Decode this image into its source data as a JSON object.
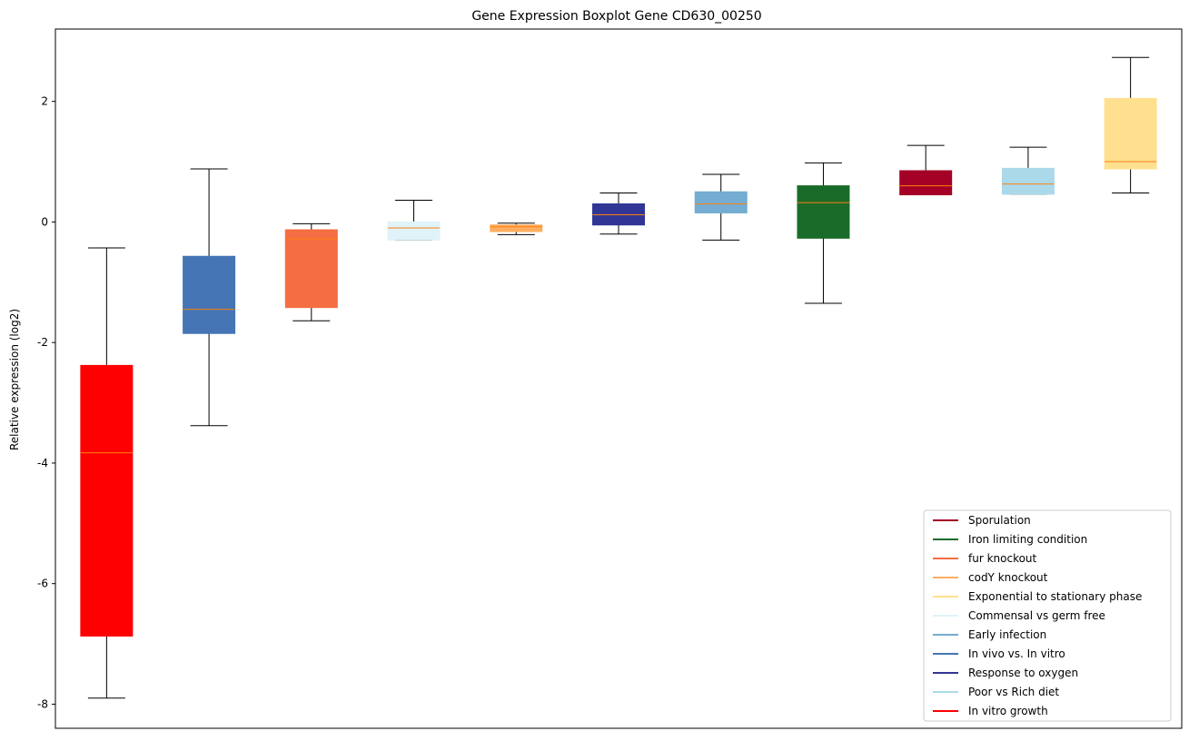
{
  "chart_data": {
    "type": "boxplot",
    "title": "Gene Expression Boxplot Gene CD630_00250",
    "xlabel": "",
    "ylabel": "Relative expression (log2)",
    "ylim": [
      -8.4,
      3.2
    ],
    "yticks": [
      -8,
      -6,
      -4,
      -2,
      0,
      2
    ],
    "xticks_visible": false,
    "grid": false,
    "legend_position": "lower right",
    "median_color": "#ff7f0e",
    "boxes": [
      {
        "name": "In vitro growth",
        "color": "#ff0000",
        "whisker_low": -7.9,
        "q1": -6.87,
        "median": -3.83,
        "q3": -2.38,
        "whisker_high": -0.43
      },
      {
        "name": "In vivo vs. In vitro",
        "color": "#4575b4",
        "whisker_low": -3.38,
        "q1": -1.85,
        "median": -1.45,
        "q3": -0.57,
        "whisker_high": 0.88
      },
      {
        "name": "fur knockout",
        "color": "#f46d43",
        "whisker_low": -1.64,
        "q1": -1.42,
        "median": -0.28,
        "q3": -0.13,
        "whisker_high": -0.03
      },
      {
        "name": "Commensal vs germ free",
        "color": "#e0f3f8",
        "whisker_low": -0.3,
        "q1": -0.3,
        "median": -0.1,
        "q3": 0.0,
        "whisker_high": 0.36
      },
      {
        "name": "codY knockout",
        "color": "#fdae61",
        "whisker_low": -0.21,
        "q1": -0.16,
        "median": -0.08,
        "q3": -0.05,
        "whisker_high": -0.02
      },
      {
        "name": "Response to oxygen",
        "color": "#313695",
        "whisker_low": -0.2,
        "q1": -0.05,
        "median": 0.12,
        "q3": 0.3,
        "whisker_high": 0.48
      },
      {
        "name": "Early infection",
        "color": "#74add1",
        "whisker_low": -0.3,
        "q1": 0.15,
        "median": 0.3,
        "q3": 0.5,
        "whisker_high": 0.79
      },
      {
        "name": "Iron limiting condition",
        "color": "#1a6b2a",
        "whisker_low": -1.35,
        "q1": -0.27,
        "median": 0.32,
        "q3": 0.6,
        "whisker_high": 0.98
      },
      {
        "name": "Sporulation",
        "color": "#a50026",
        "whisker_low": 0.45,
        "q1": 0.45,
        "median": 0.6,
        "q3": 0.85,
        "whisker_high": 1.27
      },
      {
        "name": "Poor vs Rich diet",
        "color": "#abd9e9",
        "whisker_low": 0.46,
        "q1": 0.46,
        "median": 0.63,
        "q3": 0.89,
        "whisker_high": 1.24
      },
      {
        "name": "Exponential to stationary phase",
        "color": "#fee090",
        "whisker_low": 0.48,
        "q1": 0.88,
        "median": 1.0,
        "q3": 2.05,
        "whisker_high": 2.73
      }
    ],
    "legend": [
      {
        "label": "Sporulation",
        "color": "#a50026"
      },
      {
        "label": "Iron limiting condition",
        "color": "#1a6b2a"
      },
      {
        "label": "fur knockout",
        "color": "#f46d43"
      },
      {
        "label": "codY knockout",
        "color": "#fdae61"
      },
      {
        "label": "Exponential to stationary phase",
        "color": "#fee090"
      },
      {
        "label": "Commensal vs germ free",
        "color": "#e0f3f8"
      },
      {
        "label": "Early infection",
        "color": "#74add1"
      },
      {
        "label": "In vivo vs. In vitro",
        "color": "#4575b4"
      },
      {
        "label": "Response to oxygen",
        "color": "#313695"
      },
      {
        "label": "Poor vs Rich diet",
        "color": "#abd9e9"
      },
      {
        "label": "In vitro growth",
        "color": "#ff0000"
      }
    ]
  }
}
